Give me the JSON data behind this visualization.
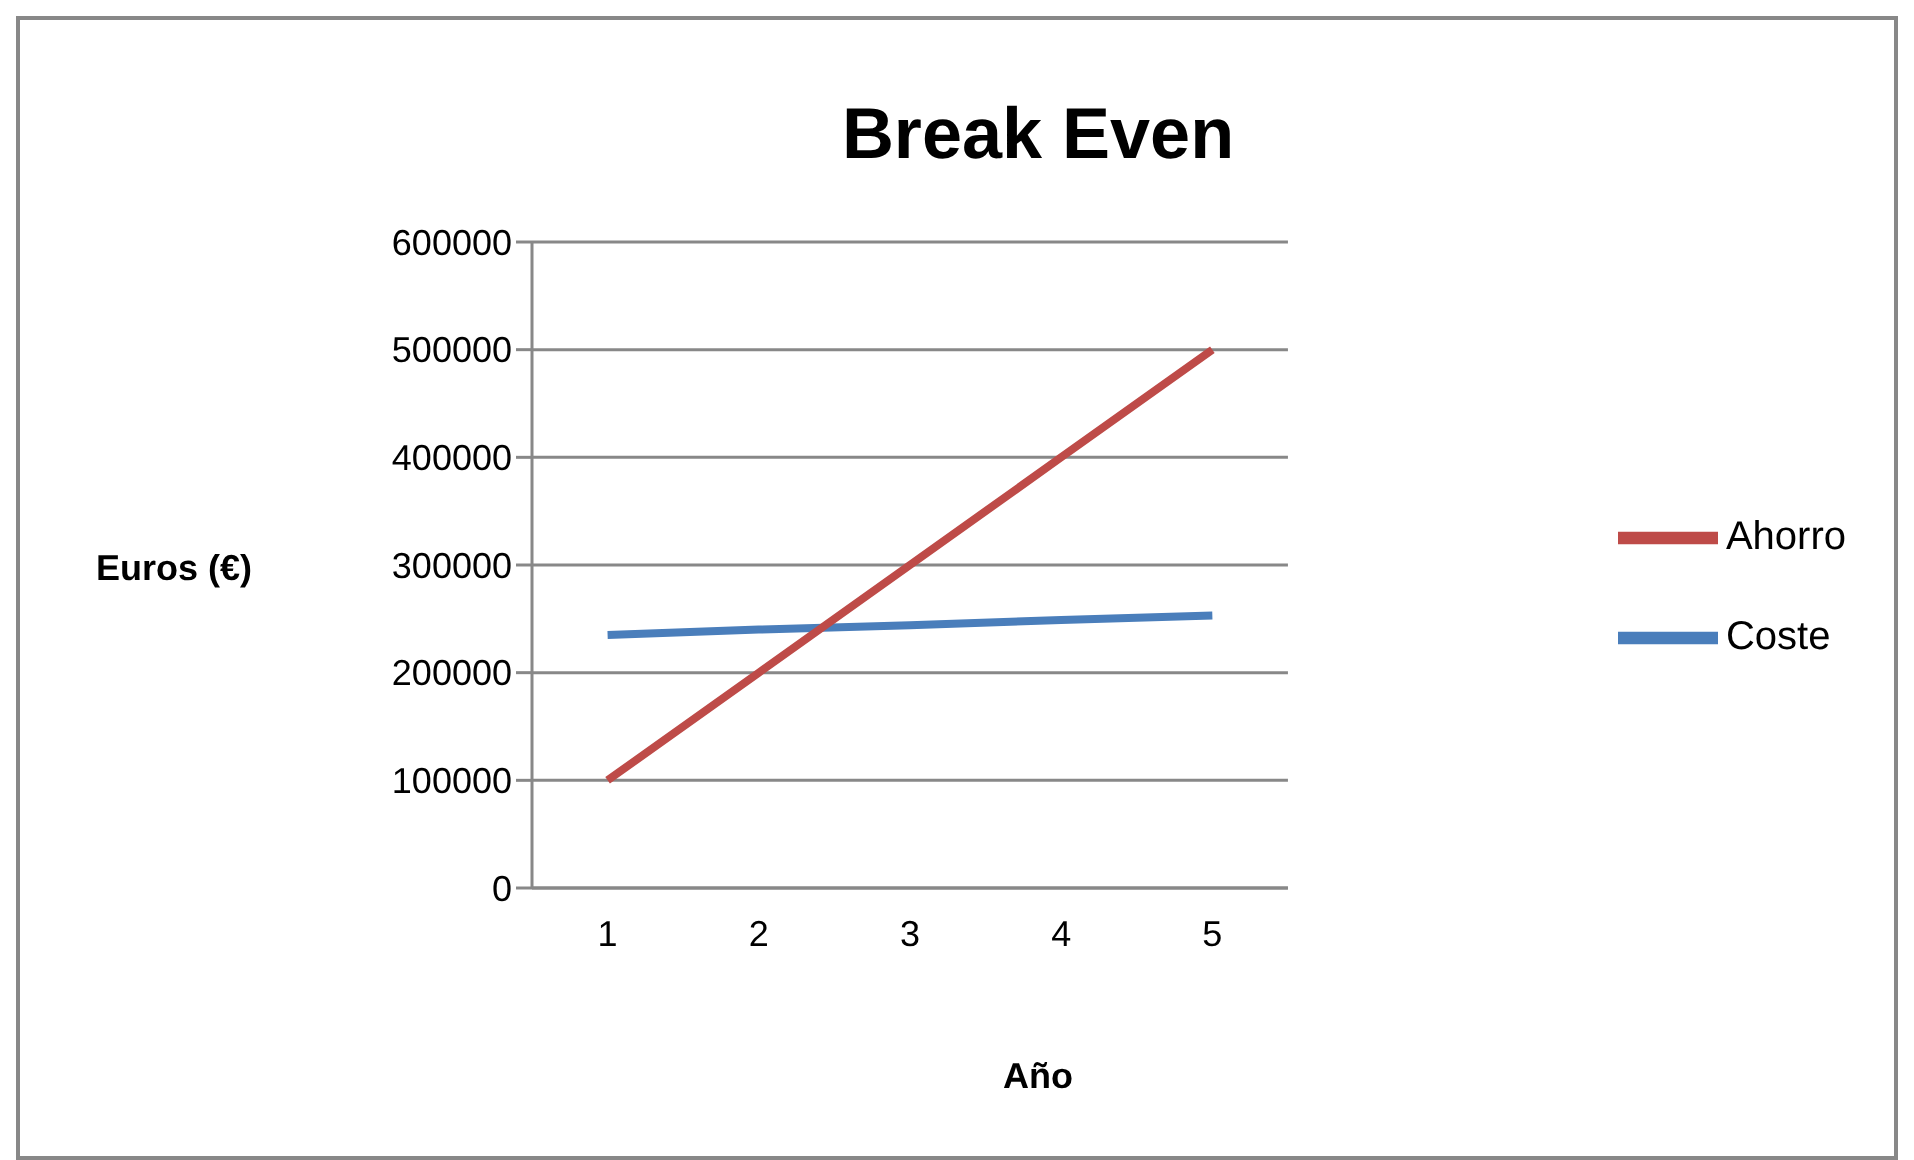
{
  "chart_data": {
    "type": "line",
    "title": "Break Even",
    "xlabel": "Año",
    "ylabel": "Euros (€)",
    "categories": [
      "1",
      "2",
      "3",
      "4",
      "5"
    ],
    "series": [
      {
        "name": "Coste",
        "color": "#4a7ebb",
        "values": [
          235000,
          240000,
          244000,
          249000,
          253000
        ]
      },
      {
        "name": "Ahorro",
        "color": "#be4b48",
        "values": [
          100000,
          200000,
          300000,
          400000,
          500000
        ]
      }
    ],
    "ylim": [
      0,
      600000
    ],
    "yticks": [
      0,
      100000,
      200000,
      300000,
      400000,
      500000,
      600000
    ],
    "grid": "y",
    "legend": "right",
    "marker": "none",
    "line_style": "solid"
  }
}
